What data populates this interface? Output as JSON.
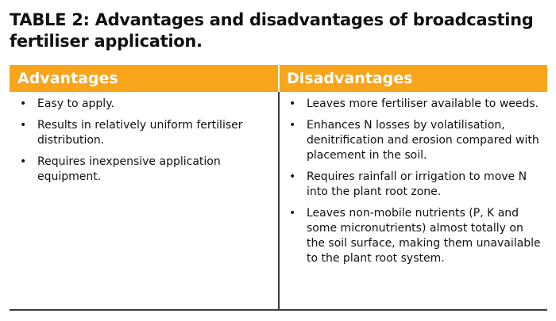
{
  "title": "TABLE 2: Advantages and disadvantages of broadcasting fertiliser application.",
  "headers": {
    "advantages": "Advantages",
    "disadvantages": "Disadvantages"
  },
  "bullet_glyph": "•",
  "advantages": [
    "Easy to apply.",
    "Results in relatively uniform fertiliser distribution.",
    "Requires inexpensive application equipment."
  ],
  "disadvantages": [
    "Leaves more fertiliser available to weeds.",
    "Enhances N losses by volatilisation, denitrification and erosion compared with placement in the soil.",
    "Requires rainfall or irrigation to move N into the plant root zone.",
    "Leaves non-mobile nutrients (P, K and some micronutrients) almost totally on the soil surface, making them unavailable to the plant root system."
  ],
  "colors": {
    "header_background": "#f8a51b",
    "header_text": "#ffffff",
    "body_text": "#111111",
    "rule": "#3a3a3a"
  }
}
